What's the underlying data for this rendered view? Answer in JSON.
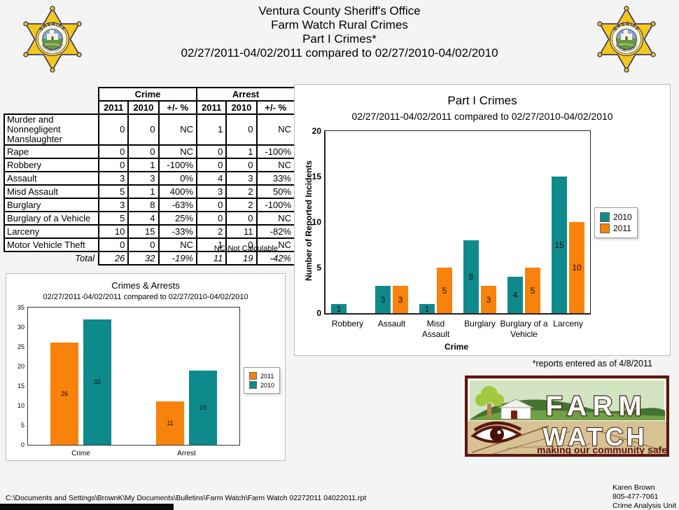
{
  "header": {
    "title_lines": [
      "Ventura County Sheriff's Office",
      "Farm Watch Rural Crimes",
      "Part I Crimes*",
      "02/27/2011-04/02/2011 compared to 02/27/2010-04/02/2010"
    ]
  },
  "badge": {
    "sheriff_text": "SHERIFF",
    "county_text": "VENTURA COUNTY"
  },
  "table": {
    "group_headers": [
      "Crime",
      "Arrest"
    ],
    "sub_headers": [
      "2011",
      "2010",
      "+/- %",
      "2011",
      "2010",
      "+/- %"
    ],
    "rows": [
      {
        "label": "Murder and Nonnegligent Manslaughter",
        "values": [
          "0",
          "0",
          "NC",
          "1",
          "0",
          "NC"
        ]
      },
      {
        "label": "Rape",
        "values": [
          "0",
          "0",
          "NC",
          "0",
          "1",
          "-100%"
        ]
      },
      {
        "label": "Robbery",
        "values": [
          "0",
          "1",
          "-100%",
          "0",
          "0",
          "NC"
        ]
      },
      {
        "label": "Assault",
        "values": [
          "3",
          "3",
          "0%",
          "4",
          "3",
          "33%"
        ]
      },
      {
        "label": "Misd  Assault",
        "values": [
          "5",
          "1",
          "400%",
          "3",
          "2",
          "50%"
        ]
      },
      {
        "label": "Burglary",
        "values": [
          "3",
          "8",
          "-63%",
          "0",
          "2",
          "-100%"
        ]
      },
      {
        "label": "Burglary of a Vehicle",
        "values": [
          "5",
          "4",
          "25%",
          "0",
          "0",
          "NC"
        ]
      },
      {
        "label": "Larceny",
        "values": [
          "10",
          "15",
          "-33%",
          "2",
          "11",
          "-82%"
        ]
      },
      {
        "label": "Motor Vehicle Theft",
        "values": [
          "0",
          "0",
          "NC",
          "1",
          "0",
          "NC"
        ]
      }
    ],
    "total_row": {
      "label": "Total",
      "values": [
        "26",
        "32",
        "-19%",
        "11",
        "19",
        "-42%"
      ]
    },
    "footnote": "NC-Not Calculable"
  },
  "chart_data": [
    {
      "type": "bar",
      "title": "Crimes & Arrests",
      "subtitle": "02/27/2011-04/02/2011 compared to 02/27/2010-04/02/2010",
      "categories": [
        "Crime",
        "Arrest"
      ],
      "series": [
        {
          "name": "2011",
          "color": "#F8820B",
          "values": [
            26,
            11
          ]
        },
        {
          "name": "2010",
          "color": "#0E8A8D",
          "values": [
            32,
            19
          ]
        }
      ],
      "xlabel": "",
      "ylabel": "",
      "ylim": [
        0,
        35
      ],
      "ytick_step": 5,
      "legend_position": "right",
      "grid": false
    },
    {
      "type": "bar",
      "title": "Part I Crimes",
      "subtitle": "02/27/2011-04/02/2011 compared to 02/27/2010-04/02/2010",
      "categories": [
        "Robbery",
        "Assault",
        "Misd\nAssault",
        "Burglary",
        "Burglary of a\nVehicle",
        "Larceny"
      ],
      "series": [
        {
          "name": "2010",
          "color": "#0E8A8D",
          "values": [
            1,
            3,
            1,
            8,
            4,
            15
          ]
        },
        {
          "name": "2011",
          "color": "#F8820B",
          "values": [
            0,
            3,
            5,
            3,
            5,
            10
          ]
        }
      ],
      "xlabel": "Crime",
      "ylabel": "Number of Reported Incidents",
      "ylim": [
        0,
        20
      ],
      "ytick_step": 5,
      "legend_position": "right",
      "grid": false
    }
  ],
  "notes": {
    "reports_note": "*reports entered as of 4/8/2011"
  },
  "farmwatch_logo": {
    "line1": "FARM",
    "line2": "WATCH",
    "tagline": "making our community safe"
  },
  "footer": {
    "file_path": "C:\\Documents and Settings\\BrownK\\My Documents\\Bulletins\\Farm Watch\\Farm Watch 02272011 04022011.rpt",
    "contact_name": "Karen Brown",
    "contact_phone": "805-477-7061",
    "contact_unit": "Crime Analysis Unit"
  }
}
